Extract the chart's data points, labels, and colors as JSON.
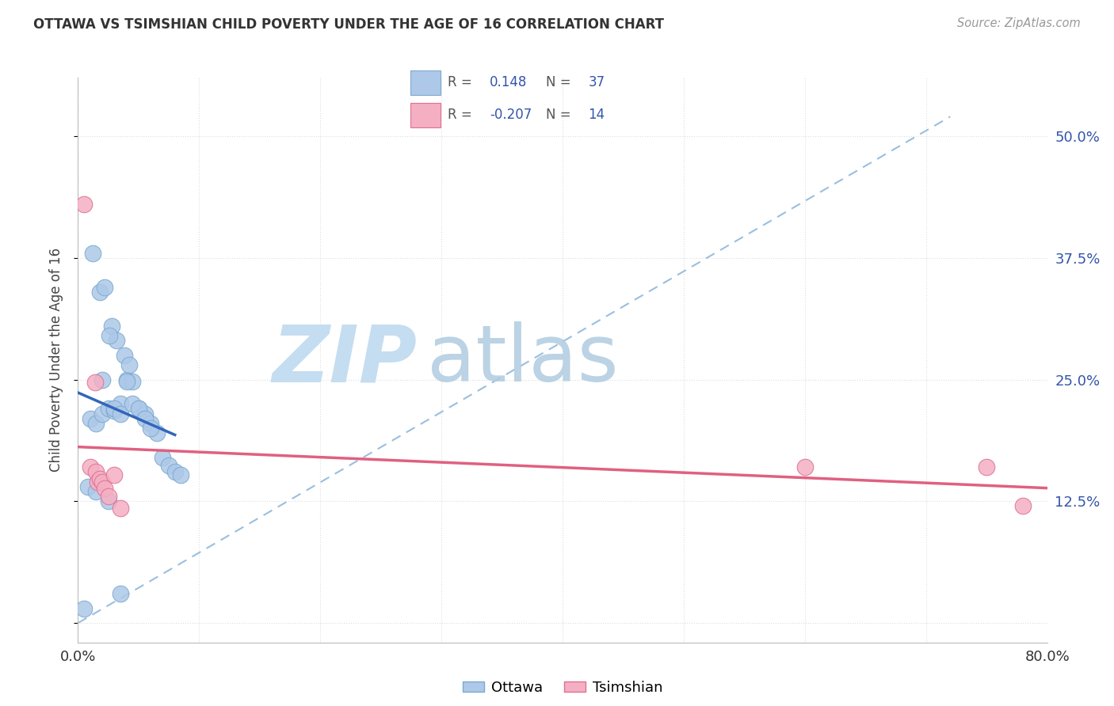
{
  "title": "OTTAWA VS TSIMSHIAN CHILD POVERTY UNDER THE AGE OF 16 CORRELATION CHART",
  "source": "Source: ZipAtlas.com",
  "ylabel": "Child Poverty Under the Age of 16",
  "ottawa_color": "#adc8e8",
  "tsimshian_color": "#f4afc3",
  "ottawa_edge": "#7aaad0",
  "tsimshian_edge": "#e07090",
  "regression_blue": "#3366bb",
  "regression_pink": "#e06080",
  "dashed_line_color": "#99bfe0",
  "watermark_zip_color": "#c8dff0",
  "watermark_atlas_color": "#a0c8e8",
  "legend_r_color": "#3355aa",
  "ottawa_R": 0.148,
  "ottawa_N": 37,
  "tsimshian_R": -0.207,
  "tsimshian_N": 14,
  "ottawa_x": [
    0.5,
    1.0,
    1.5,
    2.0,
    2.5,
    3.0,
    3.5,
    4.0,
    4.5,
    5.0,
    5.5,
    6.0,
    6.5,
    7.0,
    7.5,
    8.0,
    8.5,
    1.8,
    2.2,
    2.8,
    3.2,
    3.8,
    4.2,
    1.2,
    2.0,
    2.6,
    3.0,
    3.5,
    4.0,
    4.5,
    5.0,
    5.5,
    6.0,
    0.8,
    1.5,
    2.5,
    3.5
  ],
  "ottawa_y": [
    1.5,
    21.0,
    20.5,
    21.5,
    22.0,
    21.8,
    22.5,
    25.0,
    24.8,
    22.0,
    21.5,
    20.5,
    19.5,
    17.0,
    16.2,
    15.5,
    15.2,
    34.0,
    34.5,
    30.5,
    29.0,
    27.5,
    26.5,
    38.0,
    25.0,
    29.5,
    22.0,
    21.5,
    24.8,
    22.5,
    22.0,
    21.0,
    20.0,
    14.0,
    13.5,
    12.5,
    3.0
  ],
  "tsimshian_x": [
    0.5,
    1.0,
    1.4,
    1.5,
    1.6,
    1.8,
    2.0,
    2.2,
    2.5,
    3.0,
    3.5,
    60.0,
    75.0,
    78.0
  ],
  "tsimshian_y": [
    43.0,
    16.0,
    24.7,
    15.5,
    14.5,
    14.8,
    14.5,
    13.8,
    13.0,
    15.2,
    11.8,
    16.0,
    16.0,
    12.0
  ],
  "background_color": "#ffffff",
  "plot_bg": "#ffffff",
  "grid_color": "#dddddd"
}
